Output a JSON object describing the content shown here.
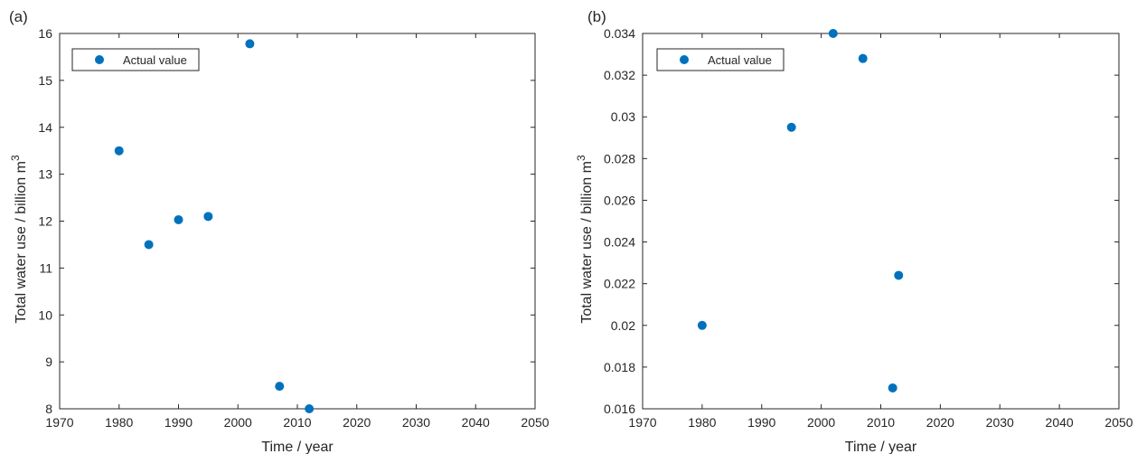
{
  "chart_data": [
    {
      "type": "scatter",
      "panel_label": "(a)",
      "xlabel": "Time / year",
      "ylabel": "Total water use / billion m",
      "ylabel_superscript": "3",
      "xlim": [
        1970,
        2050
      ],
      "ylim": [
        8,
        16
      ],
      "xticks": [
        "1970",
        "1980",
        "1990",
        "2000",
        "2010",
        "2020",
        "2030",
        "2040",
        "2050"
      ],
      "yticks": [
        "8",
        "9",
        "10",
        "11",
        "12",
        "13",
        "14",
        "15",
        "16"
      ],
      "legend": "top-left",
      "grid": false,
      "series": [
        {
          "name": "Actual value",
          "color": "#0072BD",
          "x": [
            1980,
            1985,
            1990,
            1995,
            2002,
            2007,
            2012
          ],
          "y": [
            13.5,
            11.5,
            12.03,
            12.1,
            15.78,
            8.48,
            8.0
          ]
        }
      ]
    },
    {
      "type": "scatter",
      "panel_label": "(b)",
      "xlabel": "Time / year",
      "ylabel": "Total water use / billion m",
      "ylabel_superscript": "3",
      "xlim": [
        1970,
        2050
      ],
      "ylim": [
        0.016,
        0.034
      ],
      "xticks": [
        "1970",
        "1980",
        "1990",
        "2000",
        "2010",
        "2020",
        "2030",
        "2040",
        "2050"
      ],
      "yticks": [
        "0.016",
        "0.018",
        "0.02",
        "0.022",
        "0.024",
        "0.026",
        "0.028",
        "0.03",
        "0.032",
        "0.034"
      ],
      "legend": "top-left",
      "grid": false,
      "series": [
        {
          "name": "Actual value",
          "color": "#0072BD",
          "x": [
            1980,
            1995,
            2002,
            2007,
            2012,
            2013
          ],
          "y": [
            0.02,
            0.0295,
            0.034,
            0.0328,
            0.017,
            0.0224
          ]
        }
      ]
    }
  ]
}
